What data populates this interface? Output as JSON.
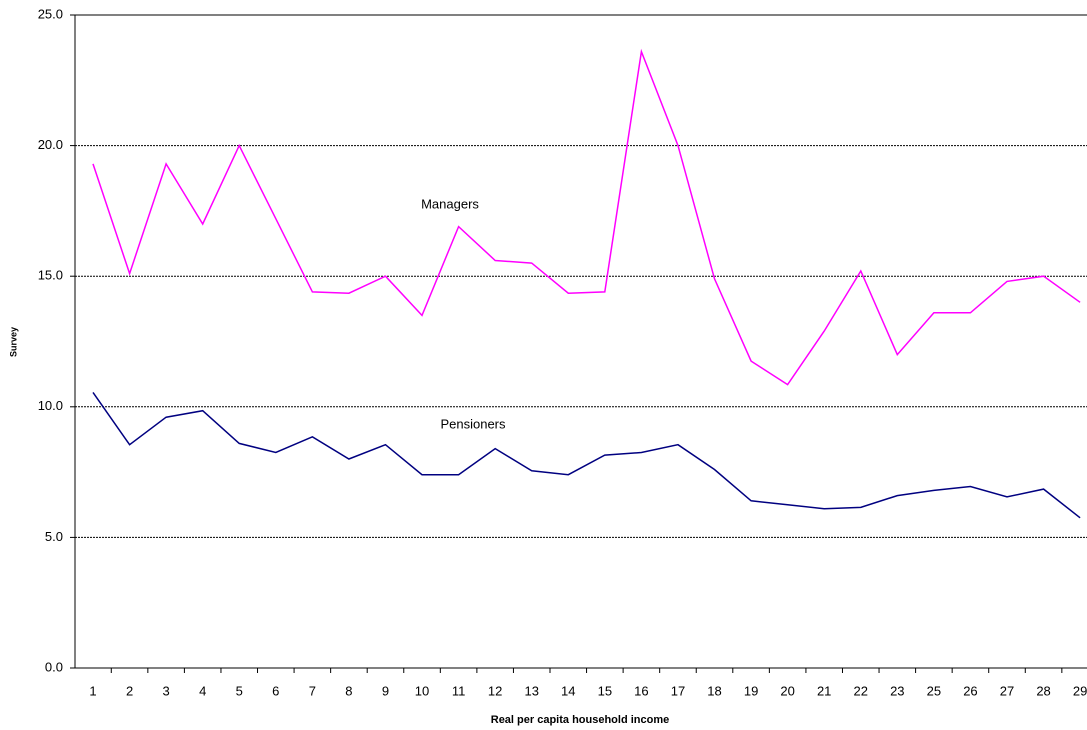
{
  "chart_data": {
    "type": "line",
    "x_label": "Real per capita household income",
    "y_label": "Survey",
    "categories": [
      "1",
      "2",
      "3",
      "4",
      "5",
      "6",
      "7",
      "8",
      "9",
      "10",
      "11",
      "12",
      "13",
      "14",
      "15",
      "16",
      "17",
      "18",
      "19",
      "20",
      "21",
      "22",
      "23",
      "25",
      "26",
      "27",
      "28",
      "29"
    ],
    "series": [
      {
        "name": "Managers",
        "color": "#ff00ff",
        "values": [
          19.3,
          15.1,
          19.3,
          17.0,
          20.0,
          17.2,
          14.4,
          14.35,
          15.0,
          13.5,
          16.9,
          15.6,
          15.5,
          14.35,
          14.4,
          23.6,
          20.0,
          14.9,
          11.75,
          10.85,
          12.9,
          15.2,
          12.0,
          13.6,
          13.6,
          14.8,
          15.0,
          14.0
        ]
      },
      {
        "name": "Pensioners",
        "color": "#000080",
        "values": [
          10.55,
          8.55,
          9.6,
          9.85,
          8.6,
          8.25,
          8.85,
          8.0,
          8.55,
          7.4,
          7.4,
          8.4,
          7.55,
          7.4,
          8.15,
          8.25,
          8.55,
          7.6,
          6.4,
          6.25,
          6.1,
          6.15,
          6.6,
          6.8,
          6.95,
          6.55,
          6.85,
          5.75
        ]
      }
    ],
    "ylim": [
      0,
      25
    ],
    "yticks": [
      {
        "value": 0,
        "label": "0.0"
      },
      {
        "value": 5,
        "label": "5.0"
      },
      {
        "value": 10,
        "label": "10.0"
      },
      {
        "value": 15,
        "label": "15.0"
      },
      {
        "value": 20,
        "label": "20.0"
      },
      {
        "value": 25,
        "label": "25.0"
      }
    ],
    "grid": true
  }
}
